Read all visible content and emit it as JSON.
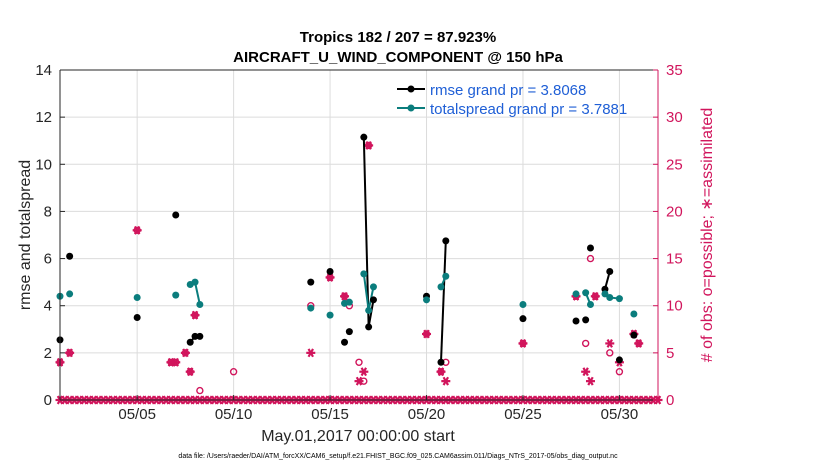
{
  "chart_data": {
    "type": "line",
    "title": "Tropics 182 / 207 = 87.923%",
    "subtitle": "AIRCRAFT_U_WIND_COMPONENT @ 150 hPa",
    "xlabel": "May.01,2017 00:00:00 start",
    "ylabel": "rmse and totalspread",
    "ylabel_right": "# of obs: o=possible; ∗=assimilated",
    "xlim": [
      1,
      32
    ],
    "ylim": [
      0,
      14
    ],
    "ylim_right": [
      0,
      35
    ],
    "x_ticks": [
      5,
      10,
      15,
      20,
      25,
      30
    ],
    "x_tick_labels": [
      "05/05",
      "05/10",
      "05/15",
      "05/20",
      "05/25",
      "05/30"
    ],
    "y_ticks": [
      0,
      2,
      4,
      6,
      8,
      10,
      12,
      14
    ],
    "y_tick_labels": [
      "0",
      "2",
      "4",
      "6",
      "8",
      "10",
      "12",
      "14"
    ],
    "y_right_ticks": [
      0,
      5,
      10,
      15,
      20,
      25,
      30,
      35
    ],
    "y_right_tick_labels": [
      "0",
      "5",
      "10",
      "15",
      "20",
      "25",
      "30",
      "35"
    ],
    "legend": [
      {
        "name": "rmse grand pr = 3.8068",
        "color": "#000000"
      },
      {
        "name": "totalspread grand pr = 3.7881",
        "color": "#0b7d7d"
      }
    ],
    "series": [
      {
        "name": "rmse",
        "color": "#000000",
        "points": [
          [
            1.0,
            2.55
          ],
          [
            1.5,
            6.1
          ],
          [
            5.0,
            3.5
          ],
          [
            7.0,
            7.85
          ],
          [
            7.75,
            2.45
          ],
          [
            8.0,
            2.7
          ],
          [
            8.25,
            2.7
          ],
          [
            14.0,
            5.0
          ],
          [
            15.0,
            5.45
          ],
          [
            15.75,
            2.45
          ],
          [
            16.0,
            2.9
          ],
          [
            16.75,
            11.15
          ],
          [
            17.0,
            3.1
          ],
          [
            17.25,
            4.25
          ],
          [
            20.0,
            4.4
          ],
          [
            20.75,
            1.6
          ],
          [
            21.0,
            6.75
          ],
          [
            25.0,
            3.45
          ],
          [
            27.75,
            3.35
          ],
          [
            28.25,
            3.4
          ],
          [
            28.5,
            6.45
          ],
          [
            29.25,
            4.7
          ],
          [
            29.5,
            5.45
          ],
          [
            30.0,
            1.7
          ],
          [
            30.75,
            2.75
          ]
        ],
        "segments": [
          [
            4,
            6
          ],
          [
            11,
            13
          ],
          [
            15,
            16
          ],
          [
            21,
            22
          ]
        ]
      },
      {
        "name": "totalspread",
        "color": "#0b7d7d",
        "points": [
          [
            1.0,
            4.4
          ],
          [
            1.5,
            4.5
          ],
          [
            5.0,
            4.35
          ],
          [
            7.0,
            4.45
          ],
          [
            7.75,
            4.9
          ],
          [
            8.0,
            5.0
          ],
          [
            8.25,
            4.05
          ],
          [
            14.0,
            3.9
          ],
          [
            15.0,
            3.6
          ],
          [
            15.75,
            4.1
          ],
          [
            16.0,
            4.15
          ],
          [
            16.75,
            5.35
          ],
          [
            17.0,
            3.8
          ],
          [
            17.25,
            4.8
          ],
          [
            20.0,
            4.25
          ],
          [
            20.75,
            4.8
          ],
          [
            21.0,
            5.25
          ],
          [
            25.0,
            4.05
          ],
          [
            27.75,
            4.5
          ],
          [
            28.25,
            4.55
          ],
          [
            28.5,
            4.05
          ],
          [
            29.25,
            4.5
          ],
          [
            29.5,
            4.35
          ],
          [
            30.0,
            4.3
          ],
          [
            30.75,
            3.65
          ]
        ],
        "segments": [
          [
            4,
            6
          ],
          [
            11,
            13
          ],
          [
            15,
            16
          ],
          [
            19,
            20
          ],
          [
            21,
            23
          ]
        ]
      }
    ],
    "obs_possible": [
      [
        1.0,
        4
      ],
      [
        1.5,
        5
      ],
      [
        5.0,
        18
      ],
      [
        6.75,
        4
      ],
      [
        7.0,
        4
      ],
      [
        7.5,
        5
      ],
      [
        7.75,
        3
      ],
      [
        8.0,
        9
      ],
      [
        8.25,
        1
      ],
      [
        10.0,
        3
      ],
      [
        14.0,
        10
      ],
      [
        15.0,
        13
      ],
      [
        15.75,
        11
      ],
      [
        16.0,
        10
      ],
      [
        16.5,
        4
      ],
      [
        16.75,
        2
      ],
      [
        17.0,
        27
      ],
      [
        20.0,
        7
      ],
      [
        20.75,
        3
      ],
      [
        21.0,
        4
      ],
      [
        25.0,
        6
      ],
      [
        27.75,
        11
      ],
      [
        28.25,
        6
      ],
      [
        28.5,
        15
      ],
      [
        28.75,
        11
      ],
      [
        29.5,
        5
      ],
      [
        30.0,
        3
      ],
      [
        30.75,
        7
      ],
      [
        31.0,
        6
      ]
    ],
    "obs_assimilated": [
      [
        1.0,
        4
      ],
      [
        1.5,
        5
      ],
      [
        5.0,
        18
      ],
      [
        6.75,
        4
      ],
      [
        7.0,
        4
      ],
      [
        7.5,
        5
      ],
      [
        7.75,
        3
      ],
      [
        8.0,
        9
      ],
      [
        14.0,
        5
      ],
      [
        15.0,
        13
      ],
      [
        15.75,
        11
      ],
      [
        16.5,
        2
      ],
      [
        16.75,
        3
      ],
      [
        17.0,
        27
      ],
      [
        20.0,
        7
      ],
      [
        20.75,
        3
      ],
      [
        21.0,
        2
      ],
      [
        25.0,
        6
      ],
      [
        27.75,
        11
      ],
      [
        28.25,
        3
      ],
      [
        28.5,
        2
      ],
      [
        28.75,
        11
      ],
      [
        29.5,
        6
      ],
      [
        30.0,
        4
      ],
      [
        30.75,
        7
      ],
      [
        31.0,
        6
      ]
    ],
    "obs_baseline": {
      "start": 1.0,
      "end": 32.0,
      "step": 0.25,
      "value": 0
    }
  },
  "footer_text": "data file: /Users/raeder/DAI/ATM_forcXX/CAM6_setup/f.e21.FHIST_BGC.f09_025.CAM6assim.011/Diags_NTrS_2017-05/obs_diag_output.nc"
}
